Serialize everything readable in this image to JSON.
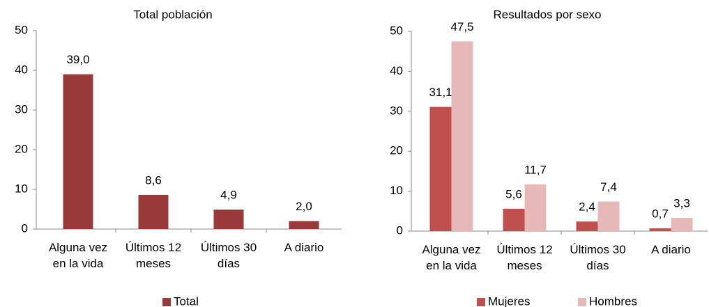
{
  "chart_data": [
    {
      "type": "bar",
      "title": "Total población",
      "categories": [
        [
          "Alguna vez",
          "en la vida"
        ],
        [
          "Últimos 12",
          "meses"
        ],
        [
          "Últimos 30",
          "días"
        ],
        [
          "A diario"
        ]
      ],
      "series": [
        {
          "name": "Total",
          "color": "#993a3a",
          "values": [
            39.0,
            8.6,
            4.9,
            2.0
          ],
          "value_labels": [
            "39,0",
            "8,6",
            "4,9",
            "2,0"
          ]
        }
      ],
      "ylim": [
        0,
        50
      ],
      "yticks": [
        0,
        10,
        20,
        30,
        40,
        50
      ],
      "legend": "bottom"
    },
    {
      "type": "bar",
      "title": "Resultados por sexo",
      "categories": [
        [
          "Alguna vez",
          "en la vida"
        ],
        [
          "Últimos 12",
          "meses"
        ],
        [
          "Últimos 30",
          "días"
        ],
        [
          "A diario"
        ]
      ],
      "series": [
        {
          "name": "Mujeres",
          "color": "#c0504d",
          "values": [
            31.1,
            5.6,
            2.4,
            0.7
          ],
          "value_labels": [
            "31,1",
            "5,6",
            "2,4",
            "0,7"
          ]
        },
        {
          "name": "Hombres",
          "color": "#e6b9b8",
          "values": [
            47.5,
            11.7,
            7.4,
            3.3
          ],
          "value_labels": [
            "47,5",
            "11,7",
            "7,4",
            "3,3"
          ]
        }
      ],
      "ylim": [
        0,
        50
      ],
      "yticks": [
        0,
        10,
        20,
        30,
        40,
        50
      ],
      "legend": "bottom"
    }
  ]
}
